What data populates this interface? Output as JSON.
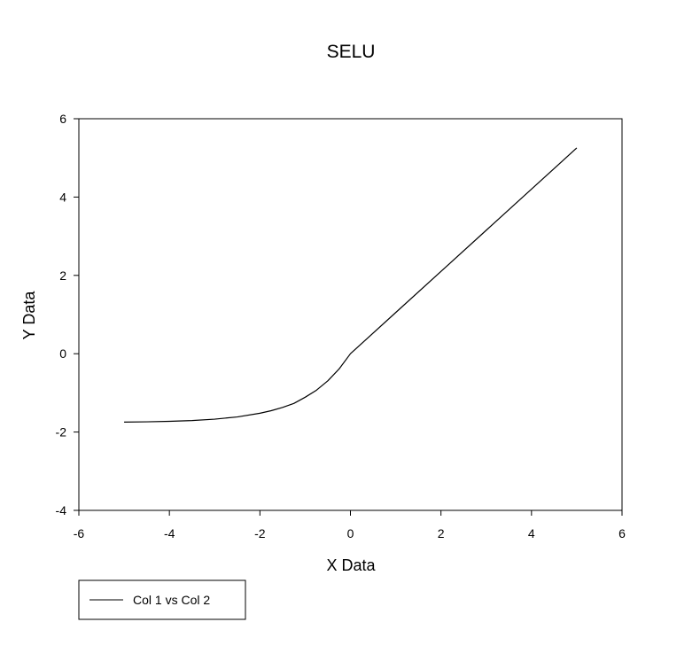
{
  "chart_data": {
    "type": "line",
    "title": "SELU",
    "xlabel": "X Data",
    "ylabel": "Y Data",
    "xlim": [
      -6,
      6
    ],
    "ylim": [
      -4,
      6
    ],
    "xticks": [
      -6,
      -4,
      -2,
      0,
      2,
      4,
      6
    ],
    "yticks": [
      -4,
      -2,
      0,
      2,
      4,
      6
    ],
    "grid": false,
    "legend_position": "bottom-left, below plot",
    "series": [
      {
        "name": "Col 1 vs Col 2",
        "color": "#000000",
        "x": [
          -5,
          -4.5,
          -4,
          -3.5,
          -3,
          -2.5,
          -2,
          -1.75,
          -1.5,
          -1.25,
          -1,
          -0.75,
          -0.5,
          -0.25,
          0,
          1,
          2,
          3,
          4,
          5
        ],
        "y": [
          -1.746,
          -1.739,
          -1.727,
          -1.707,
          -1.671,
          -1.614,
          -1.52,
          -1.455,
          -1.372,
          -1.269,
          -1.111,
          -0.931,
          -0.692,
          -0.388,
          0,
          1.051,
          2.101,
          3.152,
          4.203,
          5.254
        ]
      }
    ]
  }
}
